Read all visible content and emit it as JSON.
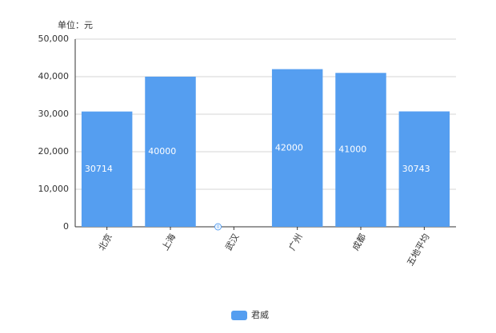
{
  "chart_data": {
    "type": "bar",
    "unit_label": "单位：元",
    "categories": [
      "北京",
      "上海",
      "武汉",
      "广州",
      "成都",
      "五地平均"
    ],
    "series": [
      {
        "name": "君威",
        "color": "#559ef0",
        "values": [
          30714,
          40000,
          0,
          42000,
          41000,
          30743
        ]
      }
    ],
    "ylim": [
      0,
      50000
    ],
    "yticks": [
      0,
      {
        "value": 10000,
        "label": "10,000"
      },
      {
        "value": 20000,
        "label": "20,000"
      },
      {
        "value": 30000,
        "label": "30,000"
      },
      {
        "value": 40000,
        "label": "40,000"
      },
      {
        "value": 50000,
        "label": "50,000"
      }
    ],
    "grid": true,
    "legend": "bottom"
  }
}
